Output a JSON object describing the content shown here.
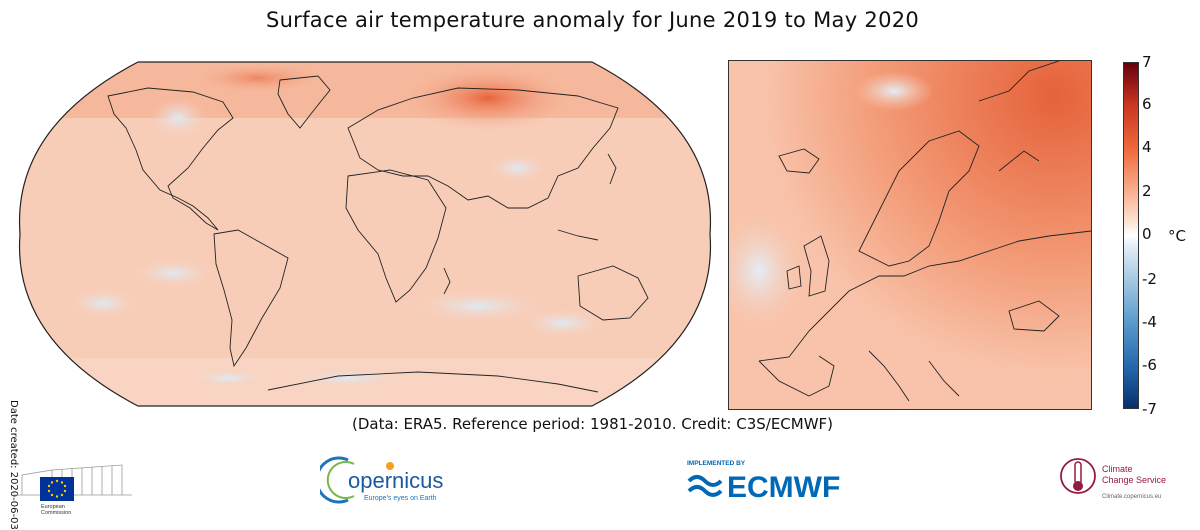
{
  "title": "Surface air temperature anomaly for June 2019 to May 2020",
  "date_created": "Date created: 2020-06-03",
  "credit": "(Data: ERA5.  Reference period: 1981-2010.  Credit: C3S/ECMWF)",
  "colorbar": {
    "unit": "°C",
    "ticks": [
      "7",
      "6",
      "4",
      "2",
      "0",
      "-2",
      "-4",
      "-6",
      "-7"
    ],
    "min": -7,
    "max": 7,
    "colors": {
      "warm": "#c9351f",
      "neutral": "#ffffff",
      "cool": "#2468ac"
    }
  },
  "logos": {
    "eu": {
      "text_line1": "European",
      "text_line2": "Commission"
    },
    "copernicus": {
      "name": "opernicus",
      "tagline": "Europe's eyes on Earth"
    },
    "ecmwf": {
      "implemented_by": "IMPLEMENTED BY",
      "name": "ECMWF"
    },
    "c3s": {
      "line1": "Climate",
      "line2": "Change Service",
      "tagline": "Climate.copernicus.eu"
    }
  },
  "maps": {
    "world": {
      "name": "global-anomaly-map"
    },
    "europe": {
      "name": "europe-anomaly-map"
    }
  }
}
